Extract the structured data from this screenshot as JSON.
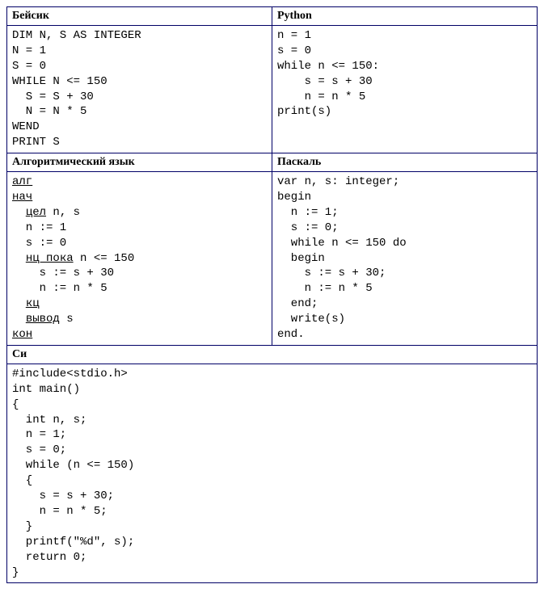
{
  "table": {
    "border_color": "#000066",
    "background_color": "#ffffff",
    "header_font": "Times New Roman",
    "code_font": "Courier New",
    "header_fontsize": 14,
    "code_fontsize": 14,
    "cells": {
      "basic": {
        "header": "Бейсик",
        "lines": [
          "DIM N, S AS INTEGER",
          "N = 1",
          "S = 0",
          "WHILE N <= 150",
          "  S = S + 30",
          "  N = N * 5",
          "WEND",
          "PRINT S"
        ]
      },
      "python": {
        "header": "Python",
        "lines": [
          "n = 1",
          "s = 0",
          "while n <= 150:",
          "    s = s + 30",
          "    n = n * 5",
          "print(s)"
        ]
      },
      "algo": {
        "header": "Алгоритмический язык",
        "segments": [
          [
            {
              "t": "алг",
              "u": true
            }
          ],
          [
            {
              "t": "нач",
              "u": true
            }
          ],
          [
            {
              "t": "  ",
              "u": false
            },
            {
              "t": "цел",
              "u": true
            },
            {
              "t": " n, s",
              "u": false
            }
          ],
          [
            {
              "t": "  n := 1",
              "u": false
            }
          ],
          [
            {
              "t": "  s := 0",
              "u": false
            }
          ],
          [
            {
              "t": "  ",
              "u": false
            },
            {
              "t": "нц пока",
              "u": true
            },
            {
              "t": " n <= 150",
              "u": false
            }
          ],
          [
            {
              "t": "    s := s + 30",
              "u": false
            }
          ],
          [
            {
              "t": "    n := n * 5",
              "u": false
            }
          ],
          [
            {
              "t": "  ",
              "u": false
            },
            {
              "t": "кц",
              "u": true
            }
          ],
          [
            {
              "t": "  ",
              "u": false
            },
            {
              "t": "вывод",
              "u": true
            },
            {
              "t": " s",
              "u": false
            }
          ],
          [
            {
              "t": "кон",
              "u": true
            }
          ]
        ]
      },
      "pascal": {
        "header": "Паскаль",
        "lines": [
          "var n, s: integer;",
          "begin",
          "  n := 1;",
          "  s := 0;",
          "  while n <= 150 do",
          "  begin",
          "    s := s + 30;",
          "    n := n * 5",
          "  end;",
          "  write(s)",
          "end."
        ]
      },
      "c": {
        "header": "Си",
        "lines": [
          "#include<stdio.h>",
          "int main()",
          "{",
          "  int n, s;",
          "  n = 1;",
          "  s = 0;",
          "  while (n <= 150)",
          "  {",
          "    s = s + 30;",
          "    n = n * 5;",
          "  }",
          "  printf(\"%d\", s);",
          "  return 0;",
          "}"
        ]
      }
    }
  }
}
